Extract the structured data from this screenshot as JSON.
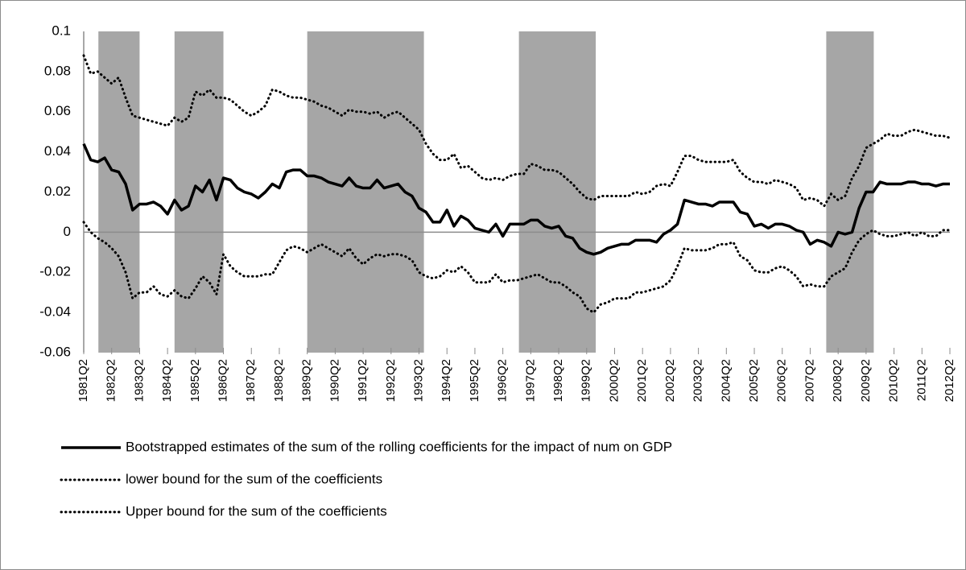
{
  "chart_data": {
    "type": "line",
    "categories": [
      "1981Q2",
      null,
      null,
      null,
      "1982Q2",
      null,
      null,
      null,
      "1983Q2",
      null,
      null,
      null,
      "1984Q2",
      null,
      null,
      null,
      "1985Q2",
      null,
      null,
      null,
      "1986Q2",
      null,
      null,
      null,
      "1987Q2",
      null,
      null,
      null,
      "1988Q2",
      null,
      null,
      null,
      "1989Q2",
      null,
      null,
      null,
      "1990Q2",
      null,
      null,
      null,
      "1991Q2",
      null,
      null,
      null,
      "1992Q2",
      null,
      null,
      null,
      "1993Q2",
      null,
      null,
      null,
      "1994Q2",
      null,
      null,
      null,
      "1995Q2",
      null,
      null,
      null,
      "1996Q2",
      null,
      null,
      null,
      "1997Q2",
      null,
      null,
      null,
      "1998Q2",
      null,
      null,
      null,
      "1999Q2",
      null,
      null,
      null,
      "2000Q2",
      null,
      null,
      null,
      "2001Q2",
      null,
      null,
      null,
      "2002Q2",
      null,
      null,
      null,
      "2003Q2",
      null,
      null,
      null,
      "2004Q2",
      null,
      null,
      null,
      "2005Q2",
      null,
      null,
      null,
      "2006Q2",
      null,
      null,
      null,
      "2007Q2",
      null,
      null,
      null,
      "2008Q2",
      null,
      null,
      null,
      "2009Q2",
      null,
      null,
      null,
      "2010Q2",
      null,
      null,
      null,
      "2011Q2",
      null,
      null,
      null,
      "2012Q2"
    ],
    "series": [
      {
        "name": "Bootstrapped estimates of the sum of the rolling coefficients for the impact of num on GDP",
        "color": "#000000",
        "style": "solid",
        "values": [
          0.044,
          0.036,
          0.035,
          0.037,
          0.031,
          0.03,
          0.024,
          0.011,
          0.014,
          0.014,
          0.015,
          0.013,
          0.009,
          0.016,
          0.011,
          0.013,
          0.023,
          0.02,
          0.026,
          0.016,
          0.027,
          0.026,
          0.022,
          0.02,
          0.019,
          0.017,
          0.02,
          0.024,
          0.022,
          0.03,
          0.031,
          0.031,
          0.028,
          0.028,
          0.027,
          0.025,
          0.024,
          0.023,
          0.027,
          0.023,
          0.022,
          0.022,
          0.026,
          0.022,
          0.023,
          0.024,
          0.02,
          0.018,
          0.012,
          0.01,
          0.005,
          0.005,
          0.011,
          0.003,
          0.008,
          0.006,
          0.002,
          0.001,
          0.0,
          0.004,
          -0.002,
          0.004,
          0.004,
          0.004,
          0.006,
          0.006,
          0.003,
          0.002,
          0.003,
          -0.002,
          -0.003,
          -0.008,
          -0.01,
          -0.011,
          -0.01,
          -0.008,
          -0.007,
          -0.006,
          -0.006,
          -0.004,
          -0.004,
          -0.004,
          -0.005,
          -0.001,
          0.001,
          0.004,
          0.016,
          0.015,
          0.014,
          0.014,
          0.013,
          0.015,
          0.015,
          0.015,
          0.01,
          0.009,
          0.003,
          0.004,
          0.002,
          0.004,
          0.004,
          0.003,
          0.001,
          0.0,
          -0.006,
          -0.004,
          -0.005,
          -0.007,
          0.0,
          -0.001,
          0.0,
          0.012,
          0.02,
          0.02,
          0.025,
          0.024,
          0.024,
          0.024,
          0.025,
          0.025,
          0.024,
          0.024,
          0.023,
          0.024,
          0.024
        ]
      },
      {
        "name": "lower bound for the sum of the coefficients",
        "color": "#000000",
        "style": "dotted",
        "values": [
          0.005,
          0.0,
          -0.003,
          -0.005,
          -0.008,
          -0.012,
          -0.02,
          -0.033,
          -0.03,
          -0.03,
          -0.027,
          -0.031,
          -0.032,
          -0.029,
          -0.032,
          -0.033,
          -0.028,
          -0.022,
          -0.025,
          -0.031,
          -0.011,
          -0.017,
          -0.02,
          -0.022,
          -0.022,
          -0.022,
          -0.021,
          -0.021,
          -0.015,
          -0.009,
          -0.007,
          -0.008,
          -0.01,
          -0.008,
          -0.006,
          -0.008,
          -0.01,
          -0.012,
          -0.008,
          -0.013,
          -0.016,
          -0.013,
          -0.011,
          -0.012,
          -0.011,
          -0.011,
          -0.012,
          -0.014,
          -0.02,
          -0.022,
          -0.023,
          -0.022,
          -0.019,
          -0.02,
          -0.017,
          -0.02,
          -0.025,
          -0.025,
          -0.025,
          -0.021,
          -0.025,
          -0.024,
          -0.024,
          -0.023,
          -0.022,
          -0.021,
          -0.023,
          -0.025,
          -0.025,
          -0.027,
          -0.03,
          -0.032,
          -0.038,
          -0.04,
          -0.036,
          -0.035,
          -0.033,
          -0.033,
          -0.033,
          -0.03,
          -0.03,
          -0.029,
          -0.028,
          -0.027,
          -0.024,
          -0.017,
          -0.008,
          -0.009,
          -0.009,
          -0.009,
          -0.008,
          -0.006,
          -0.006,
          -0.005,
          -0.012,
          -0.014,
          -0.019,
          -0.02,
          -0.02,
          -0.018,
          -0.017,
          -0.019,
          -0.022,
          -0.027,
          -0.026,
          -0.027,
          -0.027,
          -0.022,
          -0.02,
          -0.018,
          -0.01,
          -0.004,
          -0.001,
          0.001,
          -0.001,
          -0.002,
          -0.002,
          -0.001,
          0.0,
          -0.002,
          0.0,
          -0.002,
          -0.002,
          0.001,
          0.001
        ]
      },
      {
        "name": "Upper bound for the sum of the coefficients",
        "color": "#000000",
        "style": "dotted",
        "values": [
          0.088,
          0.079,
          0.08,
          0.077,
          0.074,
          0.077,
          0.067,
          0.058,
          0.057,
          0.056,
          0.055,
          0.054,
          0.053,
          0.057,
          0.055,
          0.057,
          0.07,
          0.068,
          0.071,
          0.067,
          0.067,
          0.066,
          0.063,
          0.06,
          0.058,
          0.06,
          0.063,
          0.071,
          0.07,
          0.068,
          0.067,
          0.067,
          0.066,
          0.065,
          0.063,
          0.062,
          0.06,
          0.058,
          0.061,
          0.06,
          0.06,
          0.059,
          0.06,
          0.057,
          0.059,
          0.06,
          0.057,
          0.054,
          0.051,
          0.044,
          0.039,
          0.036,
          0.036,
          0.039,
          0.032,
          0.033,
          0.03,
          0.027,
          0.026,
          0.027,
          0.026,
          0.028,
          0.029,
          0.029,
          0.034,
          0.033,
          0.031,
          0.031,
          0.03,
          0.027,
          0.024,
          0.02,
          0.017,
          0.016,
          0.018,
          0.018,
          0.018,
          0.018,
          0.018,
          0.02,
          0.019,
          0.02,
          0.023,
          0.024,
          0.023,
          0.03,
          0.038,
          0.038,
          0.036,
          0.035,
          0.035,
          0.035,
          0.035,
          0.036,
          0.03,
          0.027,
          0.025,
          0.025,
          0.024,
          0.026,
          0.025,
          0.024,
          0.022,
          0.016,
          0.017,
          0.016,
          0.013,
          0.019,
          0.016,
          0.018,
          0.027,
          0.033,
          0.042,
          0.044,
          0.046,
          0.049,
          0.048,
          0.048,
          0.05,
          0.051,
          0.05,
          0.049,
          0.048,
          0.048,
          0.047
        ]
      }
    ],
    "shaded_ranges": [
      [
        2.1,
        8
      ],
      [
        13,
        20
      ],
      [
        32,
        48.7
      ],
      [
        62.3,
        73.3
      ],
      [
        106.3,
        113.1
      ]
    ],
    "shade_color": "#a6a6a6",
    "ylim": [
      -0.06,
      0.1
    ],
    "yticks": [
      0.1,
      0.08,
      0.06,
      0.04,
      0.02,
      0,
      -0.02,
      -0.04,
      -0.06
    ],
    "legend": "bottom"
  }
}
